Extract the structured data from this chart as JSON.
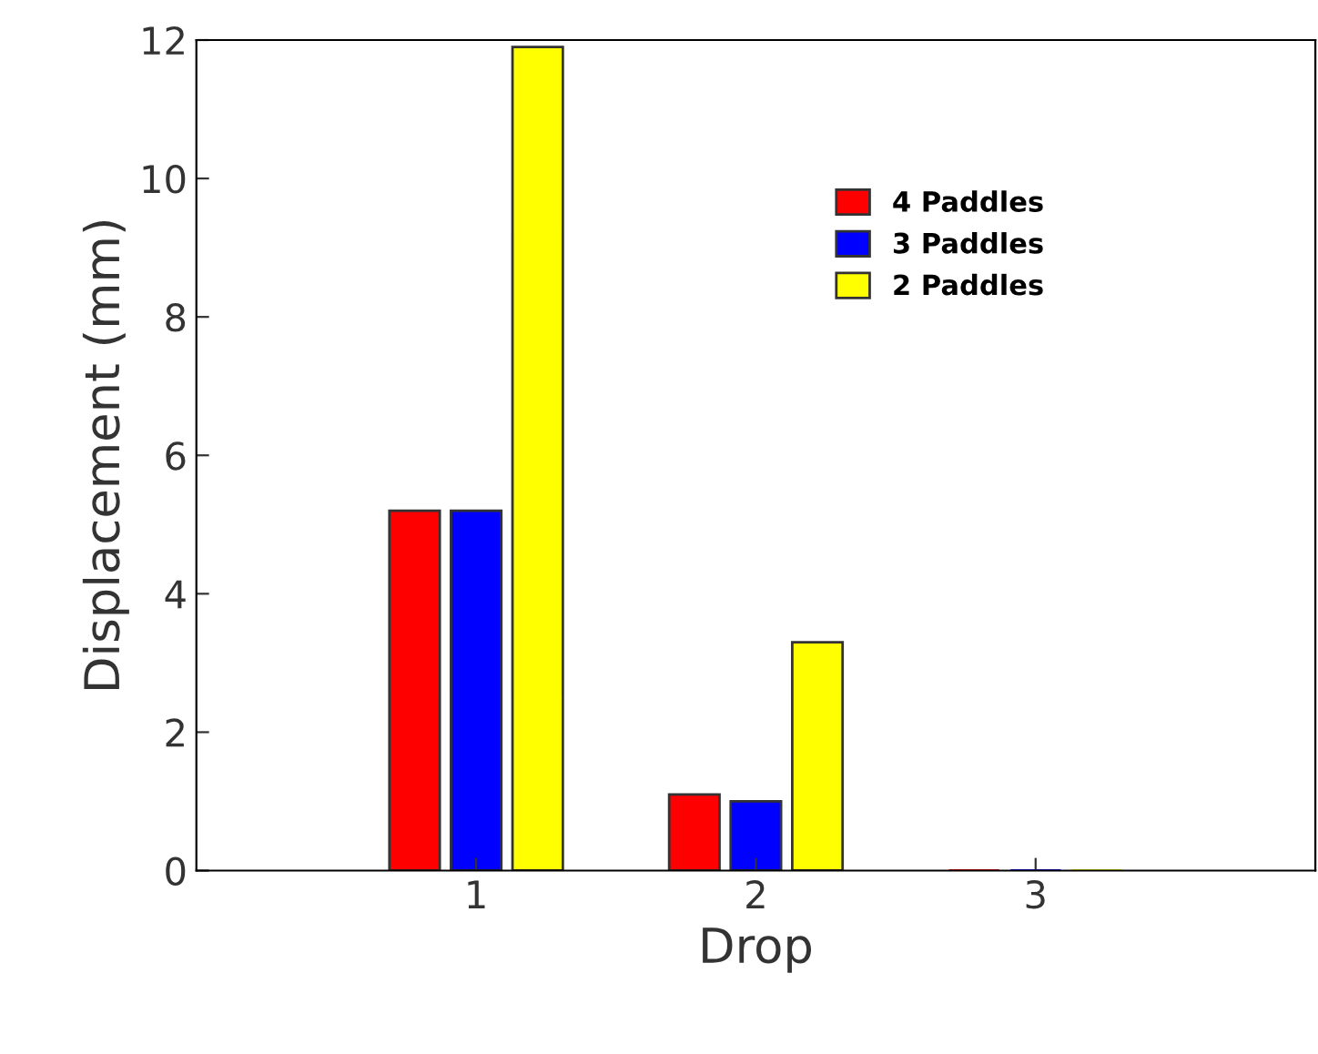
{
  "chart_data": {
    "type": "bar",
    "xlabel": "Drop",
    "ylabel": "Displacement (mm)",
    "categories": [
      "1",
      "2",
      "3"
    ],
    "series": [
      {
        "name": "4 Paddles",
        "color": "#ff0000",
        "values": [
          5.2,
          1.1,
          0
        ]
      },
      {
        "name": "3 Paddles",
        "color": "#0000ff",
        "values": [
          5.2,
          1.0,
          0
        ]
      },
      {
        "name": "2 Paddles",
        "color": "#ffff00",
        "values": [
          11.9,
          3.3,
          0
        ]
      }
    ],
    "ylim": [
      0,
      12
    ],
    "yticks": [
      0,
      2,
      4,
      6,
      8,
      10,
      12
    ],
    "legend": "top right",
    "grid": false
  }
}
